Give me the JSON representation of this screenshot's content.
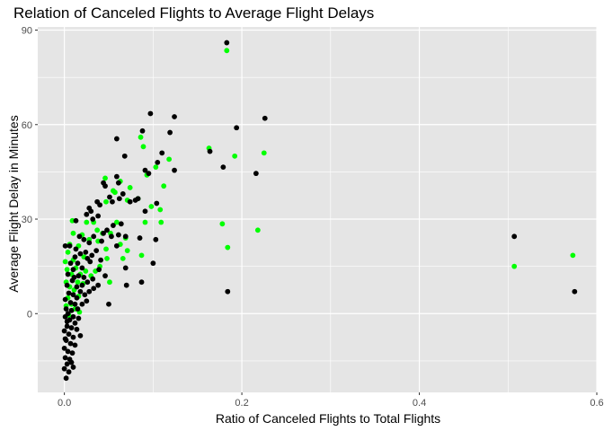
{
  "chart_data": {
    "type": "scatter",
    "title": "Relation of Canceled Flights to Average Flight Delays",
    "xlabel": "Ratio of Canceled Flights to Total Flights",
    "ylabel": "Average Flight Delay in Minutes",
    "xlim": [
      -0.03,
      0.6
    ],
    "ylim": [
      -25,
      91
    ],
    "x_ticks": [
      0.0,
      0.2,
      0.4,
      0.6
    ],
    "x_tick_labels": [
      "0.0",
      "0.2",
      "0.4",
      "0.6"
    ],
    "y_ticks": [
      0,
      30,
      60,
      90
    ],
    "y_tick_labels": [
      "0",
      "30",
      "60",
      "90"
    ],
    "x_minor_ticks": [
      0.1,
      0.3,
      0.5
    ],
    "y_minor_ticks": [
      -15,
      15,
      45,
      75
    ],
    "grid": true,
    "legend": "none",
    "colors": {
      "panel": "#e5e5e5",
      "grid": "#ffffff",
      "black_series": "#000000",
      "green_series": "#00ff00"
    },
    "series": [
      {
        "color": "#00ff00",
        "points": [
          [
            0.183,
            83.5
          ],
          [
            0.163,
            52.5
          ],
          [
            0.192,
            50.0
          ],
          [
            0.225,
            51.0
          ],
          [
            0.118,
            49.0
          ],
          [
            0.103,
            46.5
          ],
          [
            0.086,
            56.0
          ],
          [
            0.089,
            53.0
          ],
          [
            0.112,
            40.5
          ],
          [
            0.093,
            44.0
          ],
          [
            0.046,
            43.0
          ],
          [
            0.063,
            42.0
          ],
          [
            0.074,
            40.0
          ],
          [
            0.083,
            36.5
          ],
          [
            0.047,
            35.5
          ],
          [
            0.055,
            39.0
          ],
          [
            0.098,
            34.0
          ],
          [
            0.108,
            33.0
          ],
          [
            0.057,
            38.5
          ],
          [
            0.071,
            36.0
          ],
          [
            0.178,
            28.5
          ],
          [
            0.218,
            26.5
          ],
          [
            0.184,
            21.0
          ],
          [
            0.109,
            29.0
          ],
          [
            0.091,
            29.0
          ],
          [
            0.087,
            18.5
          ],
          [
            0.069,
            24.0
          ],
          [
            0.071,
            20.0
          ],
          [
            0.063,
            22.0
          ],
          [
            0.052,
            25.5
          ],
          [
            0.043,
            25.5
          ],
          [
            0.047,
            20.5
          ],
          [
            0.048,
            17.5
          ],
          [
            0.037,
            26.5
          ],
          [
            0.033,
            29.0
          ],
          [
            0.025,
            29.0
          ],
          [
            0.028,
            23.5
          ],
          [
            0.02,
            25.0
          ],
          [
            0.022,
            18.0
          ],
          [
            0.016,
            21.5
          ],
          [
            0.01,
            25.5
          ],
          [
            0.009,
            29.5
          ],
          [
            0.006,
            22.0
          ],
          [
            0.004,
            19.5
          ],
          [
            0.01,
            17.0
          ],
          [
            0.013,
            14.5
          ],
          [
            0.018,
            12.5
          ],
          [
            0.024,
            13.5
          ],
          [
            0.03,
            12.0
          ],
          [
            0.035,
            13.5
          ],
          [
            0.04,
            15.0
          ],
          [
            0.051,
            10.0
          ],
          [
            0.021,
            9.5
          ],
          [
            0.015,
            10.0
          ],
          [
            0.008,
            12.5
          ],
          [
            0.003,
            14.0
          ],
          [
            0.002,
            10.0
          ],
          [
            0.006,
            8.5
          ],
          [
            0.011,
            7.5
          ],
          [
            0.016,
            5.5
          ],
          [
            0.004,
            5.0
          ],
          [
            0.002,
            2.5
          ],
          [
            0.008,
            3.0
          ],
          [
            0.012,
            1.5
          ],
          [
            0.005,
            -0.5
          ],
          [
            0.001,
            16.5
          ],
          [
            0.017,
            0.5
          ],
          [
            0.038,
            23.0
          ],
          [
            0.066,
            17.5
          ],
          [
            0.059,
            29.0
          ],
          [
            0.507,
            15.0
          ],
          [
            0.573,
            18.5
          ]
        ]
      },
      {
        "color": "#000000",
        "points": [
          [
            0.183,
            86.0
          ],
          [
            0.097,
            63.5
          ],
          [
            0.124,
            62.5
          ],
          [
            0.226,
            62.0
          ],
          [
            0.194,
            59.0
          ],
          [
            0.088,
            58.0
          ],
          [
            0.119,
            57.5
          ],
          [
            0.059,
            55.5
          ],
          [
            0.11,
            51.0
          ],
          [
            0.068,
            50.0
          ],
          [
            0.164,
            51.5
          ],
          [
            0.105,
            48.0
          ],
          [
            0.124,
            45.5
          ],
          [
            0.179,
            46.5
          ],
          [
            0.216,
            44.5
          ],
          [
            0.091,
            45.5
          ],
          [
            0.095,
            44.5
          ],
          [
            0.059,
            43.5
          ],
          [
            0.061,
            41.5
          ],
          [
            0.044,
            41.5
          ],
          [
            0.046,
            40.5
          ],
          [
            0.066,
            38.0
          ],
          [
            0.08,
            36.0
          ],
          [
            0.051,
            37.0
          ],
          [
            0.054,
            35.5
          ],
          [
            0.037,
            35.5
          ],
          [
            0.04,
            34.5
          ],
          [
            0.028,
            33.5
          ],
          [
            0.03,
            32.5
          ],
          [
            0.038,
            31.0
          ],
          [
            0.032,
            30.0
          ],
          [
            0.025,
            31.5
          ],
          [
            0.013,
            29.5
          ],
          [
            0.091,
            32.5
          ],
          [
            0.104,
            35.0
          ],
          [
            0.074,
            35.5
          ],
          [
            0.083,
            36.5
          ],
          [
            0.062,
            36.5
          ],
          [
            0.064,
            28.5
          ],
          [
            0.055,
            28.0
          ],
          [
            0.048,
            26.5
          ],
          [
            0.053,
            24.5
          ],
          [
            0.042,
            23.0
          ],
          [
            0.044,
            25.5
          ],
          [
            0.061,
            25.0
          ],
          [
            0.059,
            21.5
          ],
          [
            0.069,
            24.5
          ],
          [
            0.085,
            24.0
          ],
          [
            0.103,
            23.5
          ],
          [
            0.033,
            24.5
          ],
          [
            0.028,
            22.5
          ],
          [
            0.022,
            23.5
          ],
          [
            0.017,
            24.5
          ],
          [
            0.006,
            21.5
          ],
          [
            0.013,
            20.5
          ],
          [
            0.018,
            19.0
          ],
          [
            0.024,
            19.5
          ],
          [
            0.036,
            20.0
          ],
          [
            0.031,
            18.5
          ],
          [
            0.026,
            17.5
          ],
          [
            0.012,
            18.0
          ],
          [
            0.007,
            16.0
          ],
          [
            0.015,
            16.0
          ],
          [
            0.029,
            16.5
          ],
          [
            0.041,
            17.0
          ],
          [
            0.1,
            16.0
          ],
          [
            0.069,
            14.5
          ],
          [
            0.02,
            14.5
          ],
          [
            0.01,
            14.0
          ],
          [
            0.004,
            12.5
          ],
          [
            0.016,
            12.0
          ],
          [
            0.022,
            11.5
          ],
          [
            0.032,
            11.0
          ],
          [
            0.026,
            10.0
          ],
          [
            0.038,
            9.0
          ],
          [
            0.07,
            9.0
          ],
          [
            0.087,
            10.0
          ],
          [
            0.009,
            10.5
          ],
          [
            0.003,
            9.0
          ],
          [
            0.014,
            8.5
          ],
          [
            0.018,
            7.0
          ],
          [
            0.005,
            6.5
          ],
          [
            0.01,
            6.0
          ],
          [
            0.014,
            5.0
          ],
          [
            0.023,
            6.0
          ],
          [
            0.028,
            7.0
          ],
          [
            0.184,
            7.0
          ],
          [
            0.001,
            4.5
          ],
          [
            0.007,
            3.5
          ],
          [
            0.012,
            3.0
          ],
          [
            0.02,
            3.0
          ],
          [
            0.05,
            3.0
          ],
          [
            0.002,
            1.5
          ],
          [
            0.008,
            1.0
          ],
          [
            0.015,
            1.5
          ],
          [
            0.004,
            0.0
          ],
          [
            0.01,
            -1.0
          ],
          [
            0.016,
            -1.5
          ],
          [
            0.001,
            -1.0
          ],
          [
            0.006,
            -2.0
          ],
          [
            0.012,
            -3.0
          ],
          [
            0.003,
            -4.0
          ],
          [
            0.008,
            -4.5
          ],
          [
            0.014,
            -5.0
          ],
          [
            0.018,
            -7.0
          ],
          [
            0.0,
            -5.5
          ],
          [
            0.005,
            -6.5
          ],
          [
            0.01,
            -7.5
          ],
          [
            0.002,
            -8.5
          ],
          [
            0.007,
            -9.5
          ],
          [
            0.012,
            -10.0
          ],
          [
            0.0,
            -11.0
          ],
          [
            0.004,
            -12.0
          ],
          [
            0.009,
            -12.5
          ],
          [
            0.001,
            -14.0
          ],
          [
            0.006,
            -14.5
          ],
          [
            0.003,
            -16.0
          ],
          [
            0.008,
            -15.5
          ],
          [
            0.0,
            -17.5
          ],
          [
            0.005,
            -18.5
          ],
          [
            0.002,
            -20.5
          ],
          [
            0.01,
            -17.0
          ],
          [
            0.001,
            -8.0
          ],
          [
            0.003,
            -2.5
          ],
          [
            0.001,
            21.5
          ],
          [
            0.011,
            11.5
          ],
          [
            0.02,
            9.0
          ],
          [
            0.025,
            4.0
          ],
          [
            0.033,
            8.0
          ],
          [
            0.046,
            12.0
          ],
          [
            0.039,
            14.0
          ],
          [
            0.507,
            24.5
          ],
          [
            0.575,
            7.0
          ]
        ]
      }
    ]
  }
}
